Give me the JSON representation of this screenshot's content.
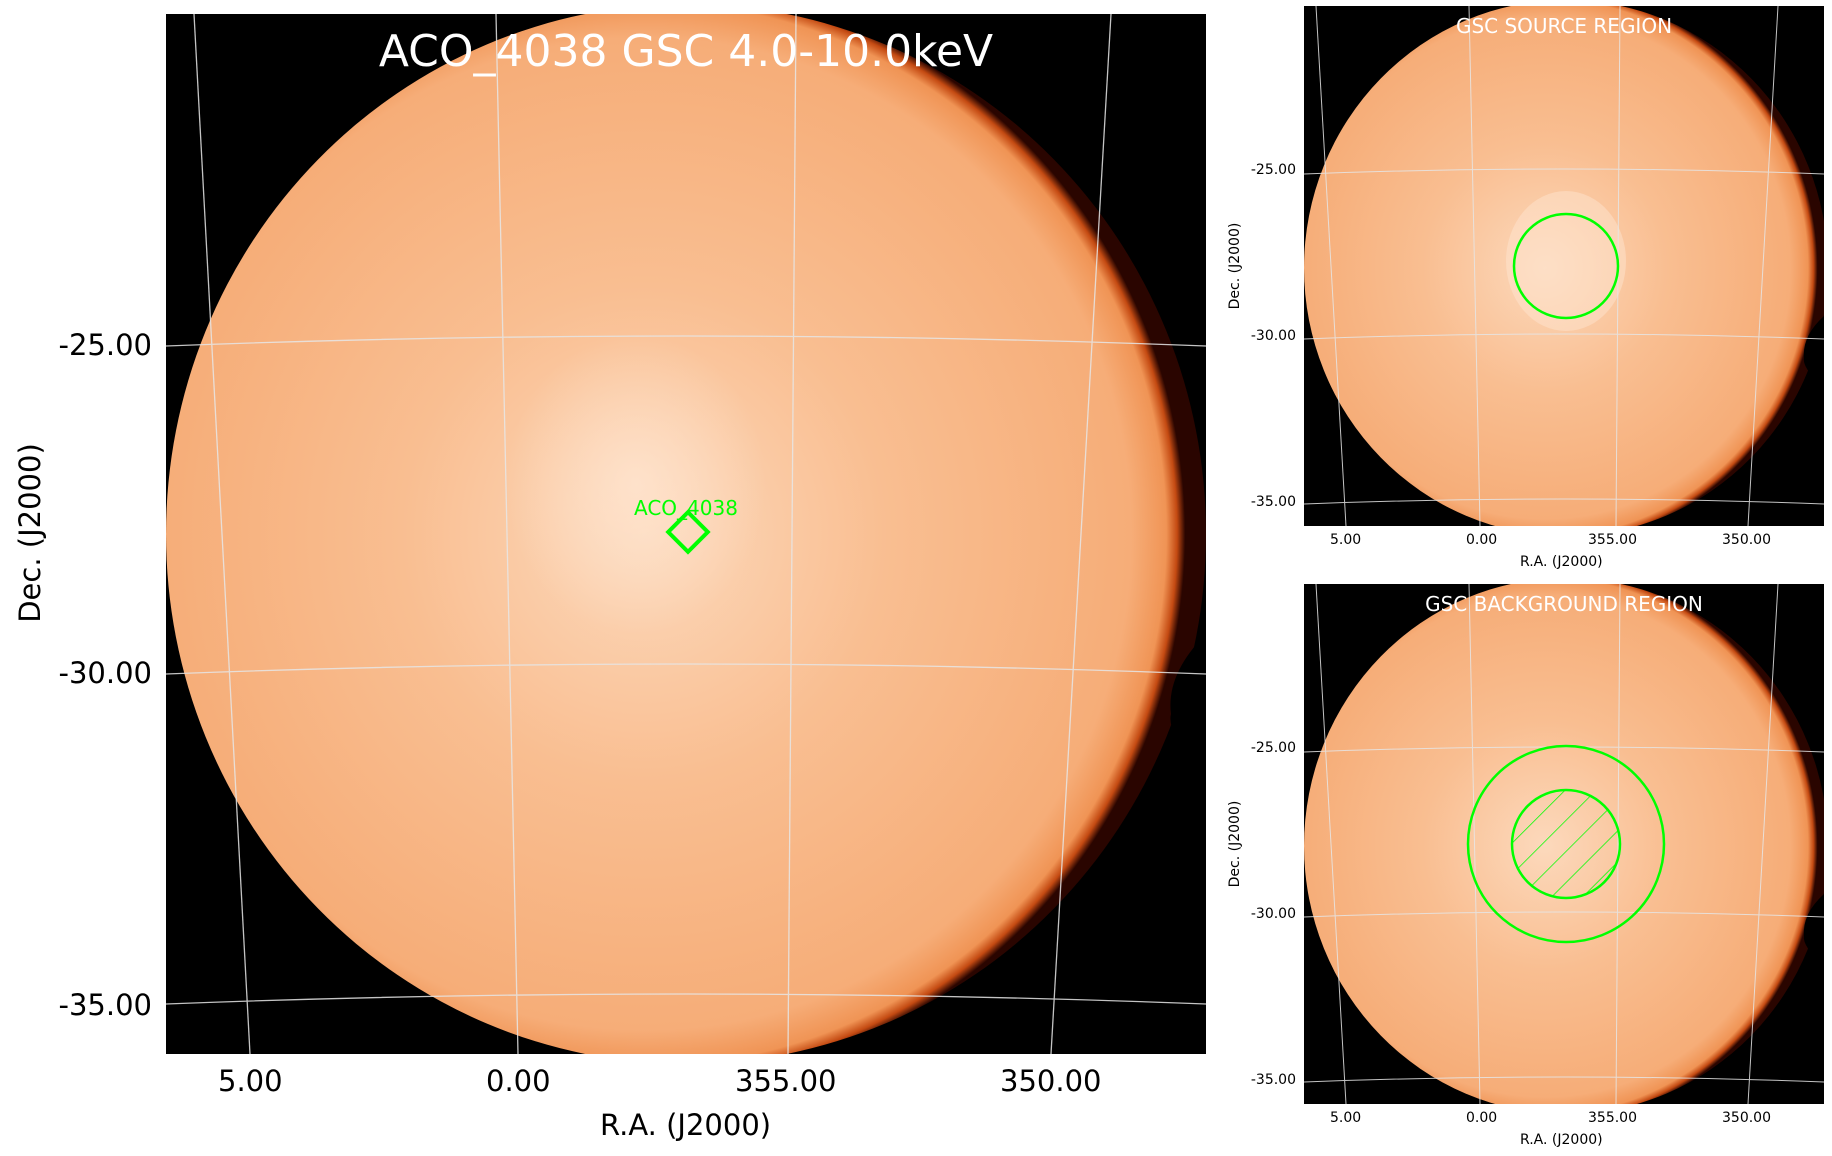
{
  "main_panel": {
    "title": "ACO_4038 GSC 4.0-10.0keV",
    "source_label": "ACO_4038",
    "source_marker_color": "#00ff00",
    "x_label": "R.A. (J2000)",
    "y_label": "Dec. (J2000)",
    "x_ticks": [
      "5.00",
      "0.00",
      "355.00",
      "350.00"
    ],
    "y_ticks": [
      "-25.00",
      "-30.00",
      "-35.00"
    ]
  },
  "source_panel": {
    "title": "GSC SOURCE REGION",
    "x_label": "R.A. (J2000)",
    "y_label": "Dec. (J2000)",
    "x_ticks": [
      "5.00",
      "0.00",
      "355.00",
      "350.00"
    ],
    "y_ticks": [
      "-25.00",
      "-30.00",
      "-35.00"
    ],
    "region_color": "#00ff00"
  },
  "background_panel": {
    "title": "GSC BACKGROUND REGION",
    "x_label": "R.A. (J2000)",
    "y_label": "Dec. (J2000)",
    "x_ticks": [
      "5.00",
      "0.00",
      "355.00",
      "350.00"
    ],
    "y_ticks": [
      "-25.00",
      "-30.00",
      "-35.00"
    ],
    "region_color": "#00ff00"
  },
  "colors": {
    "disk_center": "#fddcc0",
    "disk_mid": "#f8b584",
    "disk_edge": "#e8752e",
    "grid": "#d9d9d9"
  }
}
